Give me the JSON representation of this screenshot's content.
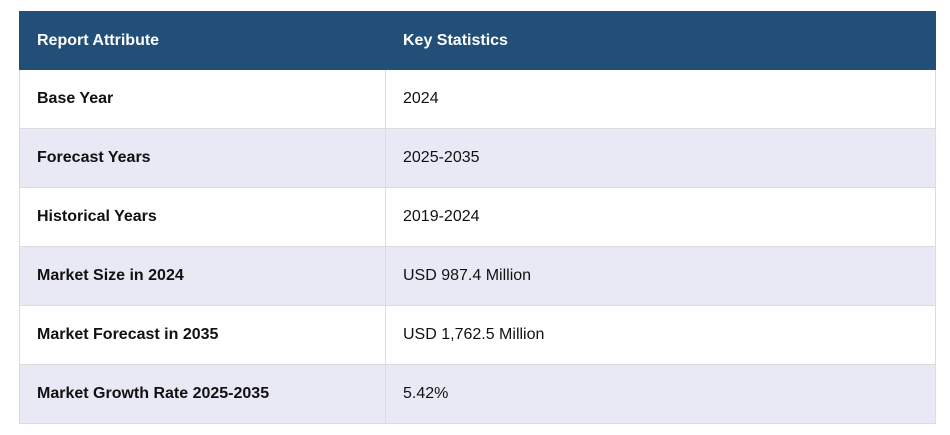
{
  "table": {
    "headers": [
      "Report Attribute",
      "Key Statistics"
    ],
    "rows": [
      {
        "attribute": "Base Year",
        "value": "2024"
      },
      {
        "attribute": "Forecast Years",
        "value": "2025-2035"
      },
      {
        "attribute": "Historical Years",
        "value": "2019-2024"
      },
      {
        "attribute": "Market Size in 2024",
        "value": "USD 987.4 Million"
      },
      {
        "attribute": "Market Forecast in 2035",
        "value": "USD 1,762.5 Million"
      },
      {
        "attribute": "Market Growth Rate 2025-2035",
        "value": "5.42%"
      }
    ]
  },
  "colors": {
    "header_bg": "#224f78",
    "header_text": "#ffffff",
    "row_alt_bg": "#e8e9f4",
    "border": "#dcdcdc"
  }
}
